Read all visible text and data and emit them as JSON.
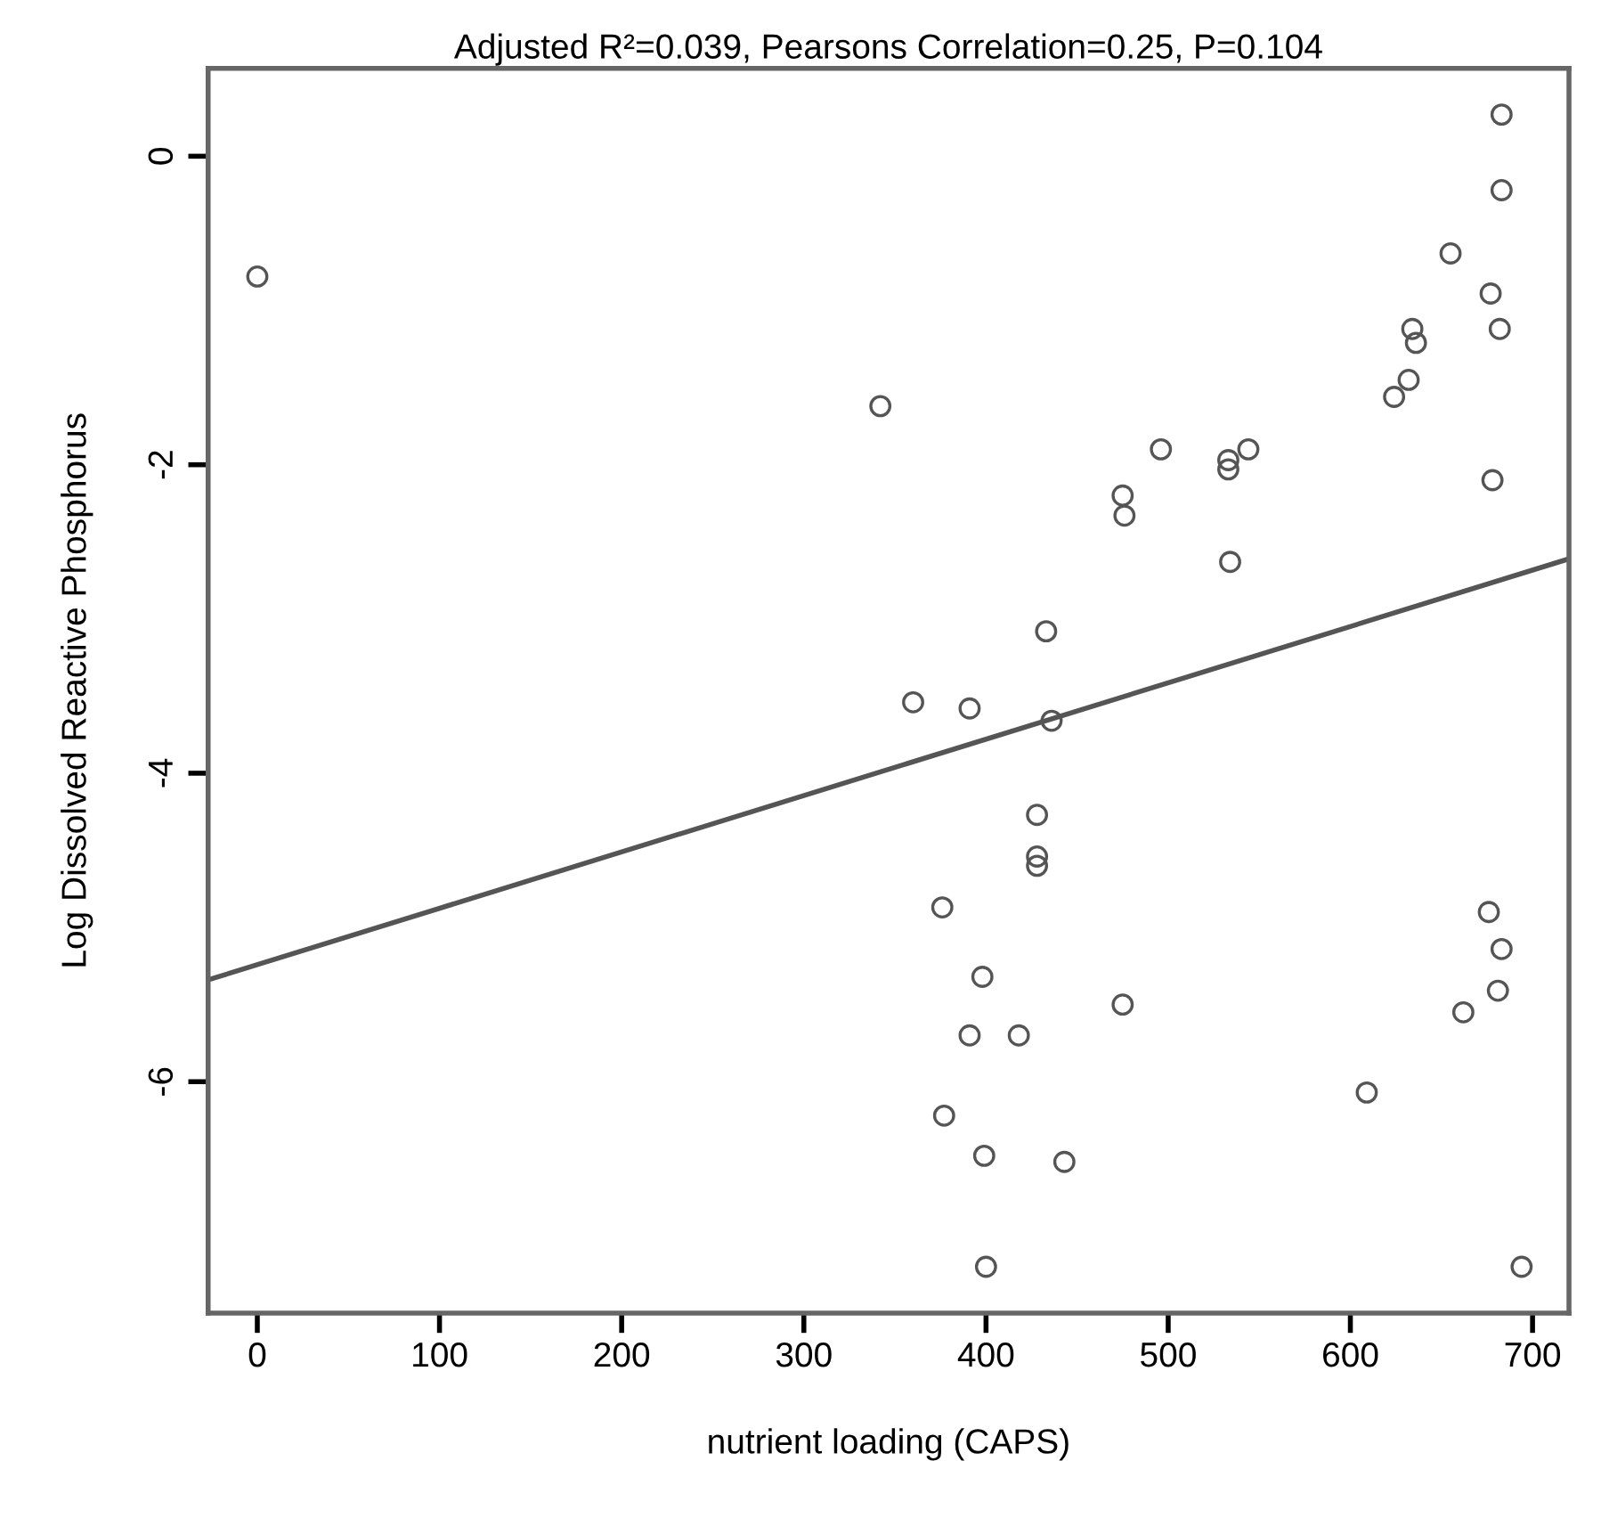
{
  "chart_data": {
    "type": "scatter",
    "title": "Adjusted R²=0.039, Pearsons Correlation=0.25, P=0.104",
    "xlabel": "nutrient loading (CAPS)",
    "ylabel": "Log Dissolved Reactive Phosphorus",
    "xlim": [
      -27,
      720
    ],
    "ylim": [
      -7.5,
      0.57
    ],
    "xticks": [
      0,
      100,
      200,
      300,
      400,
      500,
      600,
      700
    ],
    "yticks": [
      0,
      -2,
      -4,
      -6
    ],
    "grid": false,
    "legend": false,
    "series": [
      {
        "marker": "circle",
        "color": "#555555",
        "x": [
          0,
          342,
          496,
          533,
          533,
          544,
          475,
          476,
          683,
          683,
          655,
          677,
          682,
          634,
          636,
          632,
          624,
          678,
          534,
          433,
          360,
          391,
          436,
          428,
          428,
          428,
          376,
          676,
          683,
          398,
          681,
          475,
          662,
          391,
          418,
          609,
          377,
          399,
          443,
          400,
          694
        ],
        "values": [
          -0.78,
          -1.62,
          -1.9,
          -1.97,
          -2.03,
          -1.9,
          -2.2,
          -2.33,
          0.27,
          -0.22,
          -0.63,
          -0.89,
          -1.12,
          -1.12,
          -1.21,
          -1.45,
          -1.56,
          -2.1,
          -2.63,
          -3.08,
          -3.54,
          -3.58,
          -3.66,
          -4.27,
          -4.54,
          -4.6,
          -4.87,
          -4.9,
          -5.14,
          -5.32,
          -5.41,
          -5.5,
          -5.55,
          -5.7,
          -5.7,
          -6.07,
          -6.22,
          -6.48,
          -6.52,
          -7.2,
          -7.2
        ]
      },
      {
        "type": "line",
        "color": "#555555",
        "x": [
          -27,
          720
        ],
        "values": [
          -5.34,
          -2.61
        ]
      }
    ]
  }
}
